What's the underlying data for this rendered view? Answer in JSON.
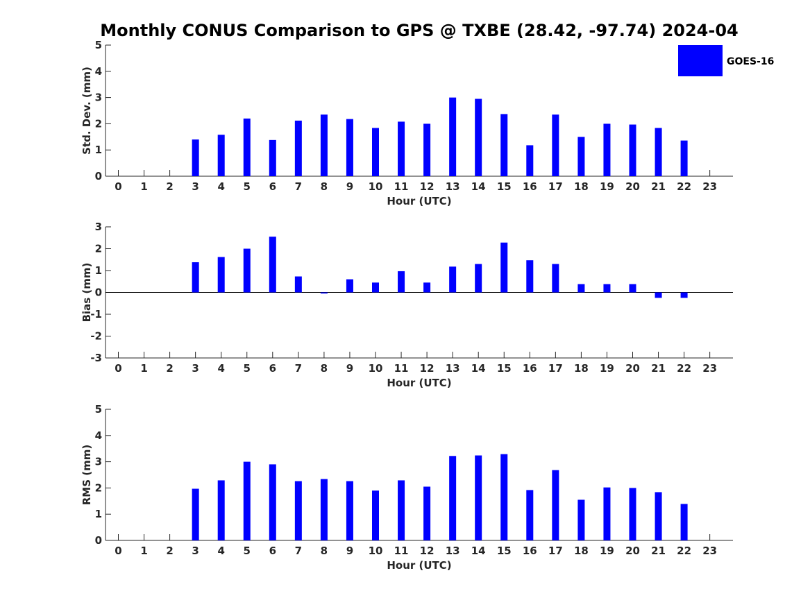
{
  "title": "Monthly CONUS Comparison to GPS @ TXBE (28.42, -97.74) 2024-04",
  "legend": {
    "label": "GOES-16",
    "color": "#0000ff",
    "placement": "top-right"
  },
  "chart_data": [
    {
      "type": "bar",
      "name": "std-dev",
      "categories": [
        "0",
        "1",
        "2",
        "3",
        "4",
        "5",
        "6",
        "7",
        "8",
        "9",
        "10",
        "11",
        "12",
        "13",
        "14",
        "15",
        "16",
        "17",
        "18",
        "19",
        "20",
        "21",
        "22",
        "23"
      ],
      "series": [
        {
          "name": "GOES-16",
          "color": "#0000ff",
          "values": [
            null,
            null,
            null,
            1.4,
            1.58,
            2.2,
            1.38,
            2.12,
            2.35,
            2.18,
            1.84,
            2.08,
            2.0,
            3.0,
            2.95,
            2.37,
            1.18,
            2.35,
            1.5,
            2.0,
            1.97,
            1.84,
            1.36,
            null
          ]
        }
      ],
      "xlabel": "Hour (UTC)",
      "ylabel": "Std. Dev. (mm)",
      "ylim": [
        0,
        5
      ],
      "yticks": [
        "0",
        "1",
        "2",
        "3",
        "4",
        "5"
      ],
      "grid": false
    },
    {
      "type": "bar",
      "name": "bias",
      "categories": [
        "0",
        "1",
        "2",
        "3",
        "4",
        "5",
        "6",
        "7",
        "8",
        "9",
        "10",
        "11",
        "12",
        "13",
        "14",
        "15",
        "16",
        "17",
        "18",
        "19",
        "20",
        "21",
        "22",
        "23"
      ],
      "series": [
        {
          "name": "GOES-16",
          "color": "#0000ff",
          "values": [
            null,
            null,
            null,
            1.38,
            1.62,
            2.0,
            2.55,
            0.73,
            -0.05,
            0.6,
            0.45,
            0.97,
            0.45,
            1.18,
            1.3,
            2.28,
            1.47,
            1.3,
            0.38,
            0.38,
            0.38,
            -0.25,
            -0.25,
            null
          ]
        }
      ],
      "xlabel": "Hour (UTC)",
      "ylabel": "Bias (mm)",
      "ylim": [
        -3,
        3
      ],
      "yticks": [
        "-3",
        "-2",
        "-1",
        "0",
        "1",
        "2",
        "3"
      ],
      "zero_line": true,
      "grid": false
    },
    {
      "type": "bar",
      "name": "rms",
      "categories": [
        "0",
        "1",
        "2",
        "3",
        "4",
        "5",
        "6",
        "7",
        "8",
        "9",
        "10",
        "11",
        "12",
        "13",
        "14",
        "15",
        "16",
        "17",
        "18",
        "19",
        "20",
        "21",
        "22",
        "23"
      ],
      "series": [
        {
          "name": "GOES-16",
          "color": "#0000ff",
          "values": [
            null,
            null,
            null,
            1.97,
            2.29,
            3.0,
            2.9,
            2.26,
            2.34,
            2.26,
            1.9,
            2.29,
            2.05,
            3.22,
            3.24,
            3.29,
            1.92,
            2.68,
            1.55,
            2.02,
            2.0,
            1.84,
            1.39,
            null
          ]
        }
      ],
      "xlabel": "Hour (UTC)",
      "ylabel": "RMS (mm)",
      "ylim": [
        0,
        5
      ],
      "yticks": [
        "0",
        "1",
        "2",
        "3",
        "4",
        "5"
      ],
      "grid": false
    }
  ]
}
